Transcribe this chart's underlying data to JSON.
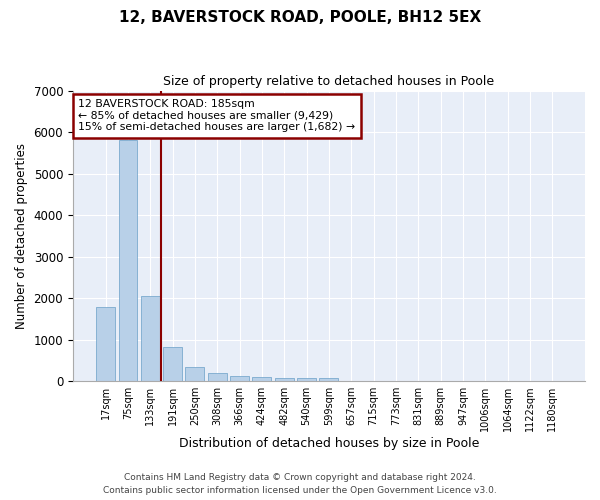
{
  "title1": "12, BAVERSTOCK ROAD, POOLE, BH12 5EX",
  "title2": "Size of property relative to detached houses in Poole",
  "xlabel": "Distribution of detached houses by size in Poole",
  "ylabel": "Number of detached properties",
  "bin_labels": [
    "17sqm",
    "75sqm",
    "133sqm",
    "191sqm",
    "250sqm",
    "308sqm",
    "366sqm",
    "424sqm",
    "482sqm",
    "540sqm",
    "599sqm",
    "657sqm",
    "715sqm",
    "773sqm",
    "831sqm",
    "889sqm",
    "947sqm",
    "1006sqm",
    "1064sqm",
    "1122sqm",
    "1180sqm"
  ],
  "bar_values": [
    1780,
    5800,
    2060,
    820,
    340,
    195,
    115,
    95,
    80,
    65,
    65,
    0,
    0,
    0,
    0,
    0,
    0,
    0,
    0,
    0,
    0
  ],
  "bar_color": "#b8d0e8",
  "bar_edge_color": "#6a9fc8",
  "background_color": "#e8eef8",
  "grid_color": "#ffffff",
  "vline_color": "#8b0000",
  "annotation_text": "12 BAVERSTOCK ROAD: 185sqm\n← 85% of detached houses are smaller (9,429)\n15% of semi-detached houses are larger (1,682) →",
  "annotation_box_color": "#8b0000",
  "ylim": [
    0,
    7000
  ],
  "yticks": [
    0,
    1000,
    2000,
    3000,
    4000,
    5000,
    6000,
    7000
  ],
  "footer1": "Contains HM Land Registry data © Crown copyright and database right 2024.",
  "footer2": "Contains public sector information licensed under the Open Government Licence v3.0."
}
